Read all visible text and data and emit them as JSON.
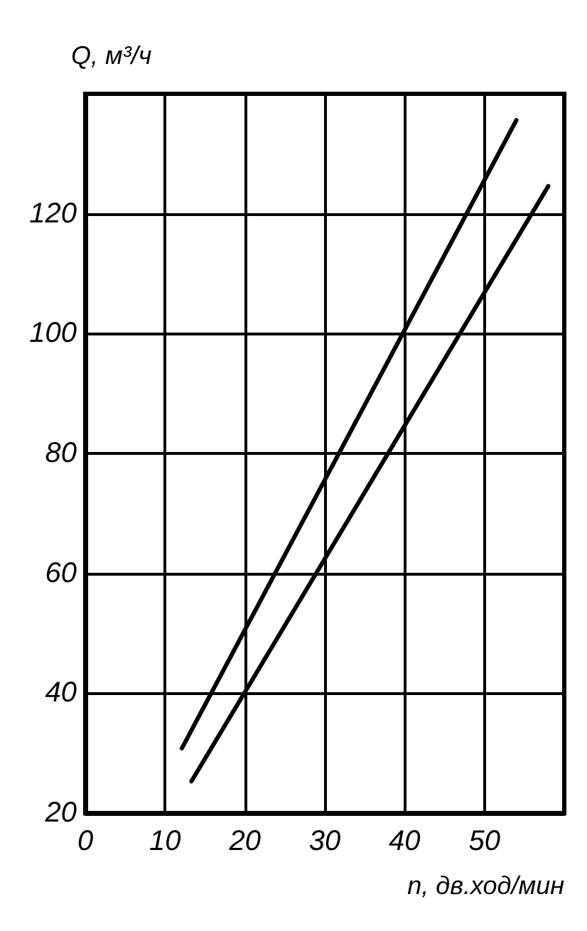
{
  "chart_data": {
    "type": "line",
    "xlabel": "n, дв.ход/мин",
    "ylabel": "Q, м³/ч",
    "xlim": [
      0,
      60
    ],
    "xticks": [
      0,
      10,
      20,
      30,
      40,
      50
    ],
    "ylim": [
      20,
      140
    ],
    "yticks": [
      20,
      40,
      60,
      80,
      100,
      120
    ],
    "grid": true,
    "marker": "none",
    "line_style": "solid",
    "series": [
      {
        "color": "#000000",
        "x": [
          12.1,
          54
        ],
        "values": [
          30.8,
          135.6
        ]
      },
      {
        "color": "#000000",
        "x": [
          13.3,
          58
        ],
        "values": [
          25.3,
          124.6
        ]
      }
    ]
  }
}
